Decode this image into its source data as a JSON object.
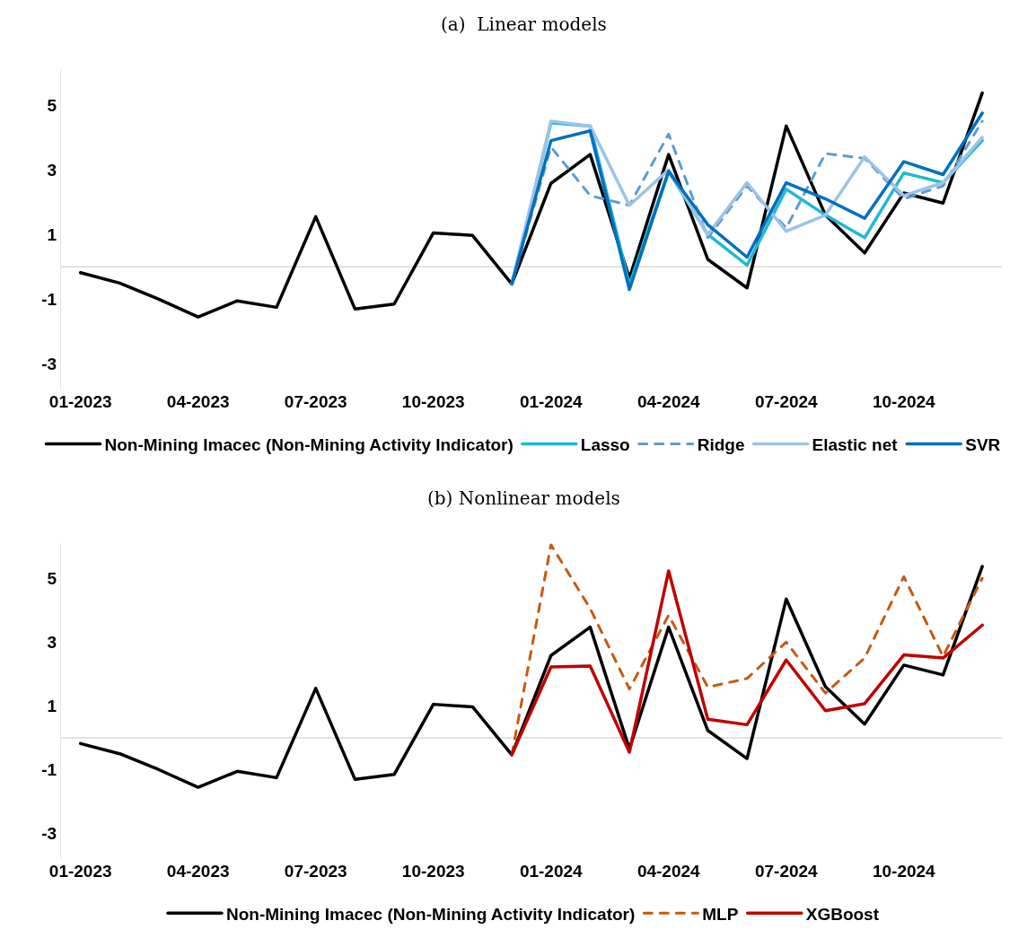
{
  "chart_data": [
    {
      "type": "line",
      "title": "(a)  Linear models",
      "categories": [
        "01-2023",
        null,
        null,
        "04-2023",
        null,
        null,
        "07-2023",
        null,
        null,
        "10-2023",
        null,
        null,
        "01-2024",
        null,
        null,
        "04-2024",
        null,
        null,
        "07-2024",
        null,
        null,
        "10-2024",
        null,
        null
      ],
      "ylim": [
        -3.8,
        6.1
      ],
      "yticks": [
        -3,
        -1,
        1,
        3,
        5
      ],
      "grid": false,
      "legend": "bottom",
      "marker": "none",
      "ref_lines": [
        {
          "axis": "y",
          "value": 0,
          "color": "#d9d9d9"
        }
      ],
      "series": [
        {
          "name": "Non-Mining Imacec (Non-Mining Activity Indicator)",
          "color": "#000000",
          "line_style": "solid",
          "values": [
            -0.18,
            -0.5,
            -1.0,
            -1.55,
            -1.05,
            -1.25,
            1.55,
            -1.3,
            -1.15,
            1.05,
            0.97,
            -0.53,
            2.58,
            3.47,
            -0.35,
            3.47,
            0.23,
            -0.65,
            4.35,
            1.6,
            0.43,
            2.28,
            1.97,
            5.37
          ]
        },
        {
          "name": "Lasso",
          "color": "#1fbad0",
          "line_style": "solid",
          "values": [
            null,
            null,
            null,
            null,
            null,
            null,
            null,
            null,
            null,
            null,
            null,
            -0.53,
            4.45,
            4.35,
            -0.55,
            2.95,
            1.0,
            0.05,
            2.4,
            1.6,
            0.9,
            2.9,
            2.6,
            3.9
          ]
        },
        {
          "name": "Ridge",
          "color": "#5b9bd5",
          "line_style": "dashed",
          "values": [
            null,
            null,
            null,
            null,
            null,
            null,
            null,
            null,
            null,
            null,
            null,
            -0.53,
            3.7,
            2.2,
            1.9,
            4.1,
            0.9,
            2.5,
            1.2,
            3.5,
            3.35,
            2.1,
            2.5,
            4.5
          ]
        },
        {
          "name": "Elastic net",
          "color": "#9dc3e6",
          "line_style": "solid",
          "values": [
            null,
            null,
            null,
            null,
            null,
            null,
            null,
            null,
            null,
            null,
            null,
            -0.53,
            4.5,
            4.35,
            1.9,
            3.0,
            1.0,
            2.6,
            1.1,
            1.6,
            3.4,
            2.2,
            2.6,
            4.0
          ]
        },
        {
          "name": "SVR",
          "color": "#0070c0",
          "line_style": "solid",
          "values": [
            null,
            null,
            null,
            null,
            null,
            null,
            null,
            null,
            null,
            null,
            null,
            -0.53,
            3.9,
            4.2,
            -0.7,
            2.95,
            1.3,
            0.3,
            2.6,
            2.1,
            1.5,
            3.25,
            2.85,
            4.75
          ]
        }
      ]
    },
    {
      "type": "line",
      "title": "(b) Nonlinear models",
      "categories": [
        "01-2023",
        null,
        null,
        "04-2023",
        null,
        null,
        "07-2023",
        null,
        null,
        "10-2023",
        null,
        null,
        "01-2024",
        null,
        null,
        "04-2024",
        null,
        null,
        "07-2024",
        null,
        null,
        "10-2024",
        null,
        null
      ],
      "ylim": [
        -3.8,
        6.1
      ],
      "yticks": [
        -3,
        -1,
        1,
        3,
        5
      ],
      "grid": false,
      "legend": "bottom",
      "marker": "none",
      "ref_lines": [
        {
          "axis": "y",
          "value": 0,
          "color": "#d9d9d9"
        }
      ],
      "series": [
        {
          "name": "Non-Mining Imacec (Non-Mining Activity Indicator)",
          "color": "#000000",
          "line_style": "solid",
          "values": [
            -0.18,
            -0.5,
            -1.0,
            -1.55,
            -1.05,
            -1.25,
            1.55,
            -1.3,
            -1.15,
            1.05,
            0.97,
            -0.53,
            2.58,
            3.47,
            -0.35,
            3.47,
            0.23,
            -0.65,
            4.35,
            1.6,
            0.43,
            2.28,
            1.97,
            5.37
          ]
        },
        {
          "name": "MLP",
          "color": "#c55a11",
          "line_style": "dashed",
          "values": [
            null,
            null,
            null,
            null,
            null,
            null,
            null,
            null,
            null,
            null,
            null,
            -0.53,
            6.05,
            4.05,
            1.53,
            3.84,
            1.59,
            1.86,
            3.0,
            1.4,
            2.5,
            5.05,
            2.55,
            5.0
          ]
        },
        {
          "name": "XGBoost",
          "color": "#c00000",
          "line_style": "solid",
          "values": [
            null,
            null,
            null,
            null,
            null,
            null,
            null,
            null,
            null,
            null,
            null,
            -0.53,
            2.22,
            2.25,
            -0.45,
            5.23,
            0.58,
            0.41,
            2.44,
            0.85,
            1.07,
            2.6,
            2.5,
            3.53
          ]
        }
      ]
    }
  ]
}
